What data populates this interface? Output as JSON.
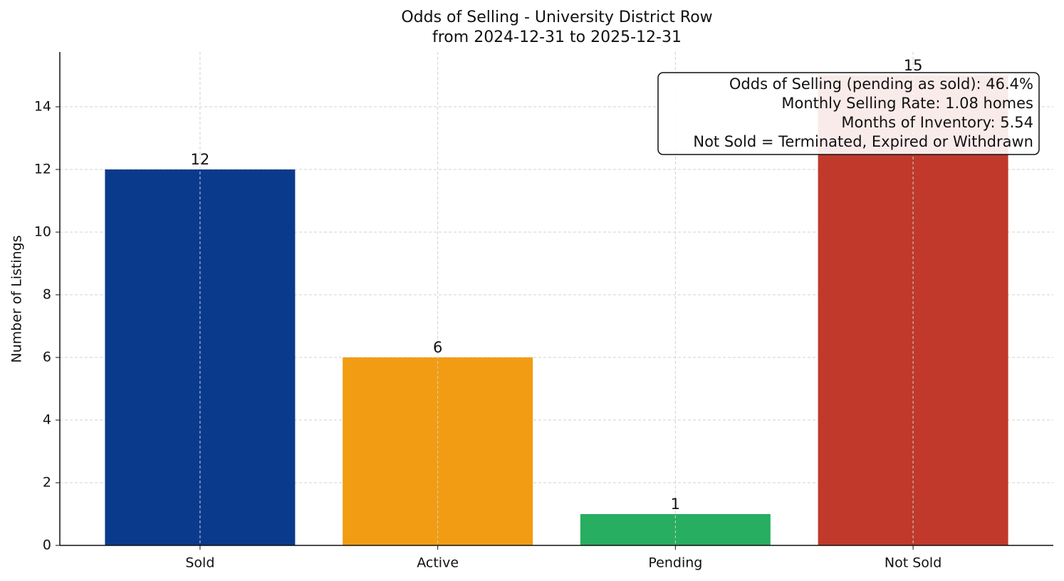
{
  "chart_data": {
    "type": "bar",
    "title": [
      "Odds of Selling - University District Row",
      "from 2024-12-31 to 2025-12-31"
    ],
    "y_label": "Number of Listings",
    "categories": [
      "Sold",
      "Active",
      "Pending",
      "Not Sold"
    ],
    "values": [
      12,
      6,
      1,
      15
    ],
    "colors": [
      "#0a3a8c",
      "#f29c13",
      "#27ae60",
      "#c0392b"
    ],
    "ylim": [
      0,
      15.75
    ],
    "yticks": [
      0,
      2,
      4,
      6,
      8,
      10,
      12,
      14
    ],
    "grid": true,
    "annotation": [
      "Odds of Selling (pending as sold): 46.4%",
      "Monthly Selling Rate: 1.08 homes",
      "Months of Inventory: 5.54",
      "Not Sold = Terminated, Expired or Withdrawn"
    ]
  }
}
